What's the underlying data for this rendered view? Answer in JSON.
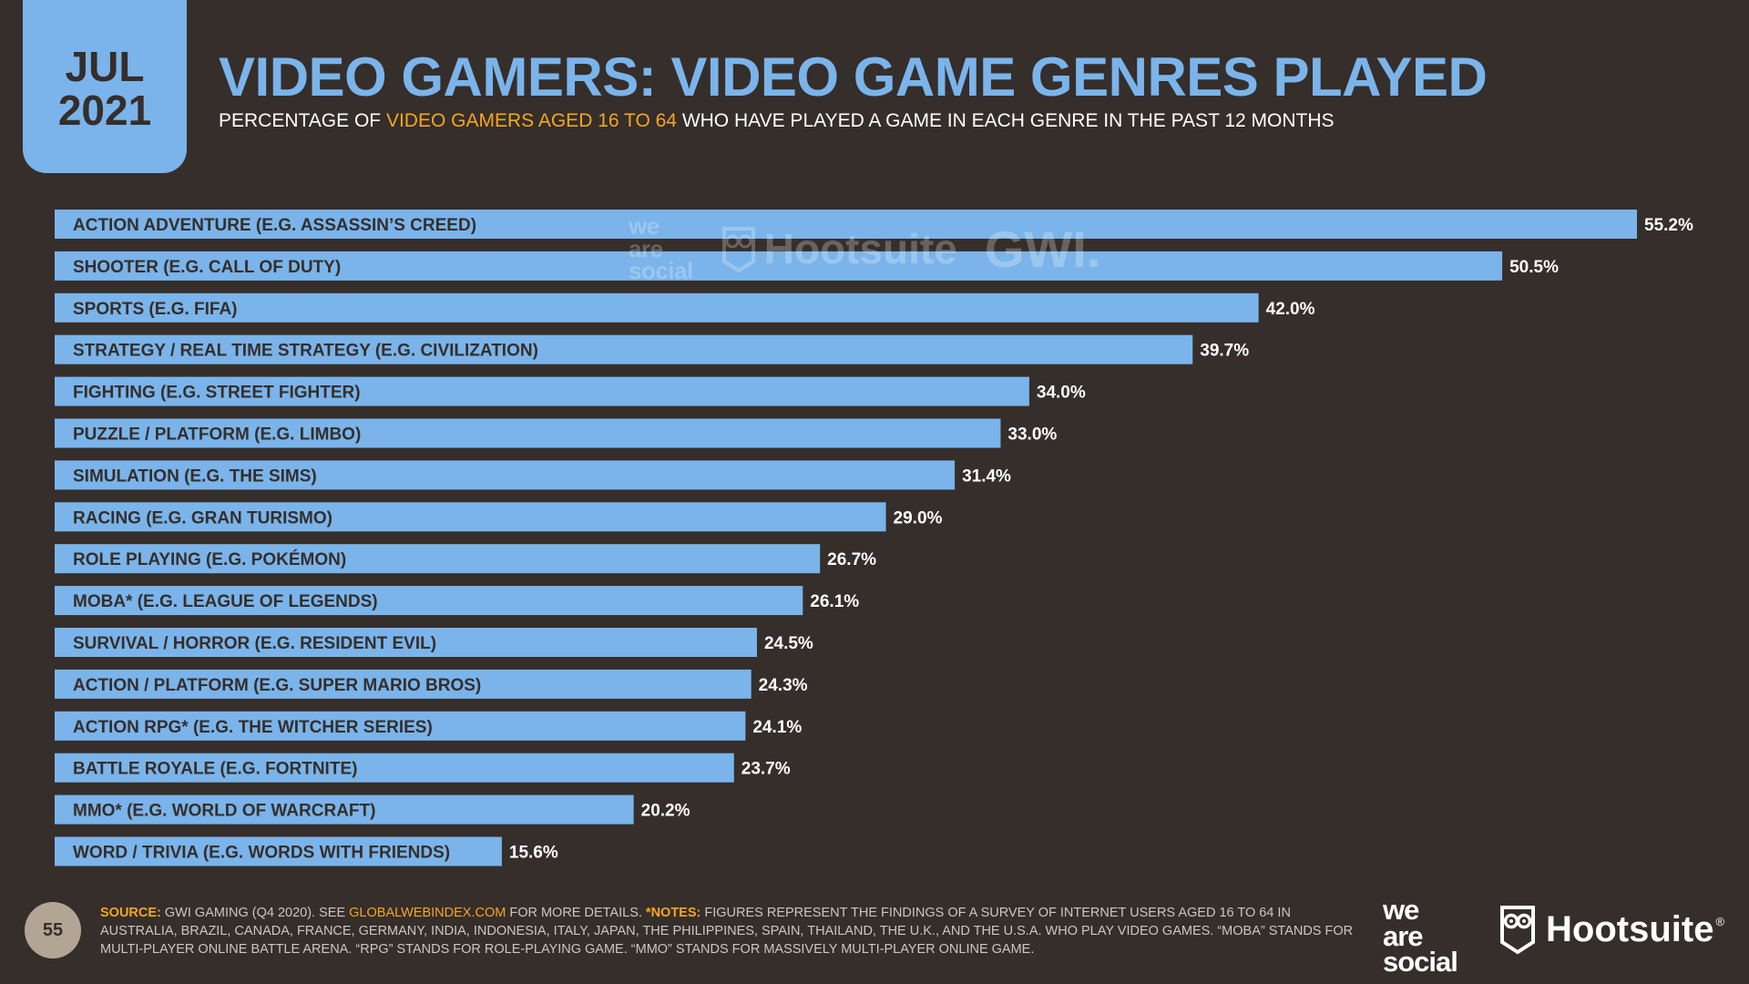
{
  "badge": {
    "month": "JUL",
    "year": "2021"
  },
  "header": {
    "title": "VIDEO GAMERS: VIDEO GAME GENRES PLAYED",
    "subtitle_pre": "PERCENTAGE OF ",
    "subtitle_highlight": "VIDEO GAMERS AGED 16 TO 64",
    "subtitle_post": " WHO HAVE PLAYED A GAME IN EACH GENRE IN THE PAST 12 MONTHS"
  },
  "chart_data": {
    "type": "bar",
    "orientation": "horizontal",
    "title": "VIDEO GAMERS: VIDEO GAME GENRES PLAYED",
    "categories": [
      "ACTION ADVENTURE (E.G. ASSASSIN’S CREED)",
      "SHOOTER (E.G. CALL OF DUTY)",
      "SPORTS (E.G. FIFA)",
      "STRATEGY / REAL TIME STRATEGY (E.G. CIVILIZATION)",
      "FIGHTING (E.G. STREET FIGHTER)",
      "PUZZLE / PLATFORM (E.G. LIMBO)",
      "SIMULATION (E.G. THE SIMS)",
      "RACING (E.G. GRAN TURISMO)",
      "ROLE PLAYING (E.G. POKÉMON)",
      "MOBA* (E.G. LEAGUE OF LEGENDS)",
      "SURVIVAL / HORROR (E.G. RESIDENT EVIL)",
      "ACTION / PLATFORM (E.G. SUPER MARIO BROS)",
      "ACTION RPG* (E.G. THE WITCHER SERIES)",
      "BATTLE ROYALE (E.G. FORTNITE)",
      "MMO* (E.G. WORLD OF WARCRAFT)",
      "WORD / TRIVIA (E.G. WORDS WITH FRIENDS)"
    ],
    "values": [
      55.2,
      50.5,
      42.0,
      39.7,
      34.0,
      33.0,
      31.4,
      29.0,
      26.7,
      26.1,
      24.5,
      24.3,
      24.1,
      23.7,
      20.2,
      15.6
    ],
    "value_labels": [
      "55.2%",
      "50.5%",
      "42.0%",
      "39.7%",
      "34.0%",
      "33.0%",
      "31.4%",
      "29.0%",
      "26.7%",
      "26.1%",
      "24.5%",
      "24.3%",
      "24.1%",
      "23.7%",
      "20.2%",
      "15.6%"
    ],
    "unit": "%",
    "xlim": [
      0,
      55.2
    ],
    "grid": false,
    "bar_color": "#7ab4ea"
  },
  "watermark": {
    "was": [
      "we",
      "are",
      "social"
    ],
    "hootsuite": "Hootsuite",
    "gwi": "GWI."
  },
  "footer": {
    "page_number": "55",
    "source_label": "SOURCE:",
    "source_text": " GWI GAMING (Q4 2020). SEE ",
    "source_link": "GLOBALWEBINDEX.COM",
    "source_text2": " FOR MORE DETAILS. ",
    "notes_label": "*NOTES:",
    "notes_text": " FIGURES REPRESENT THE FINDINGS OF A SURVEY OF INTERNET USERS AGED 16 TO 64 IN AUSTRALIA, BRAZIL, CANADA, FRANCE, GERMANY, INDIA, INDONESIA, ITALY, JAPAN, THE PHILIPPINES, SPAIN, THAILAND, THE U.K., AND THE U.S.A. WHO PLAY VIDEO GAMES. “MOBA” STANDS FOR MULTI-PLAYER ONLINE BATTLE ARENA. “RPG” STANDS FOR ROLE-PLAYING GAME. “MMO” STANDS FOR MASSIVELY MULTI-PLAYER ONLINE GAME."
  },
  "logos": {
    "was": [
      "we",
      "are",
      "social"
    ],
    "hootsuite": "Hootsuite",
    "tm": "®"
  },
  "colors": {
    "background": "#352e2b",
    "accent": "#7ab4ea",
    "highlight": "#f5a623"
  }
}
